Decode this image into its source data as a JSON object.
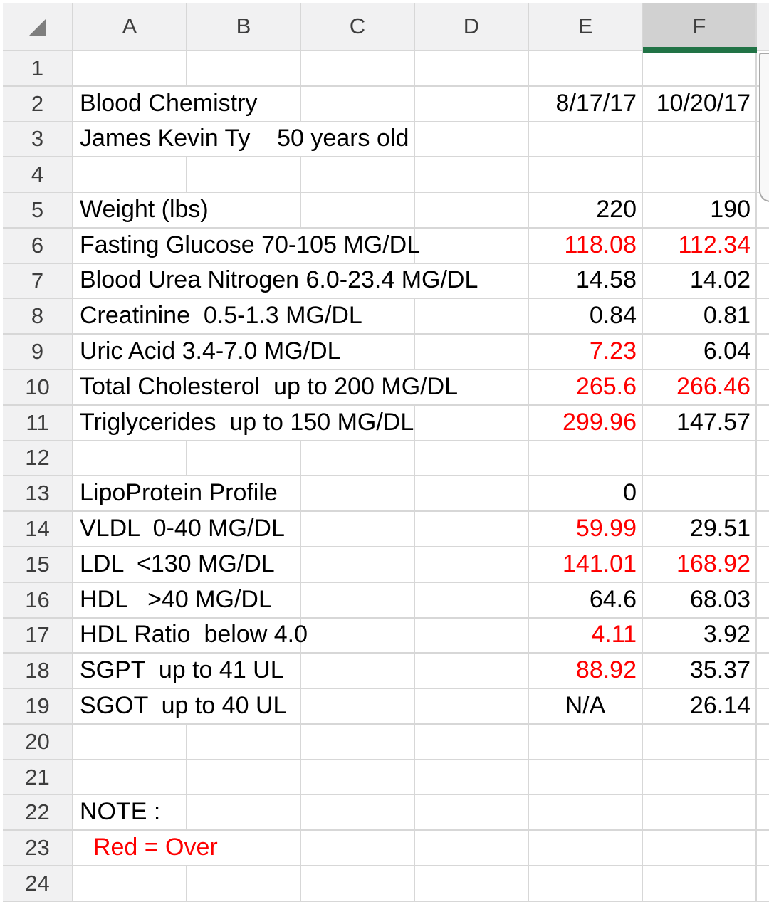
{
  "sheet": {
    "title": "Blood Chemistry spreadsheet",
    "selected_column": "F",
    "columns": [
      "A",
      "B",
      "C",
      "D",
      "E",
      "F"
    ],
    "first_visible_row": 1,
    "last_visible_row": 24
  },
  "colors": {
    "gridline": "#d7d7d7",
    "header_bg": "#f1f1f2",
    "selected_header_bg": "#d1d1d1",
    "header_text": "#3d3d3d",
    "cell_text": "#000000",
    "alert_red": "#fe0000",
    "accent_green": "#217346"
  },
  "rows": [
    {
      "n": 1
    },
    {
      "n": 2,
      "label": "Blood Chemistry",
      "values": {
        "E": {
          "text": "8/17/17"
        },
        "F": {
          "text": "10/20/17"
        }
      },
      "hidden_gridlines": [
        "A|B"
      ]
    },
    {
      "n": 3,
      "label": "James Kevin Ty    50 years old",
      "hidden_gridlines": [
        "A|B",
        "B|C"
      ]
    },
    {
      "n": 4
    },
    {
      "n": 5,
      "label": "Weight (lbs)",
      "values": {
        "E": {
          "text": "220"
        },
        "F": {
          "text": "190"
        }
      },
      "hidden_gridlines": [
        "A|B"
      ]
    },
    {
      "n": 6,
      "label": "Fasting Glucose 70-105 MG/DL",
      "values": {
        "E": {
          "text": "118.08",
          "red": true
        },
        "F": {
          "text": "112.34",
          "red": true
        }
      },
      "hidden_gridlines": [
        "A|B",
        "B|C"
      ]
    },
    {
      "n": 7,
      "label": "Blood Urea Nitrogen 6.0-23.4 MG/DL",
      "values": {
        "E": {
          "text": "14.58"
        },
        "F": {
          "text": "14.02"
        }
      },
      "hidden_gridlines": [
        "A|B",
        "B|C",
        "C|D"
      ]
    },
    {
      "n": 8,
      "label": "Creatinine  0.5-1.3 MG/DL",
      "values": {
        "E": {
          "text": "0.84"
        },
        "F": {
          "text": "0.81"
        }
      },
      "hidden_gridlines": [
        "A|B",
        "B|C"
      ]
    },
    {
      "n": 9,
      "label": "Uric Acid 3.4-7.0 MG/DL",
      "values": {
        "E": {
          "text": "7.23",
          "red": true
        },
        "F": {
          "text": "6.04"
        }
      },
      "hidden_gridlines": [
        "A|B",
        "B|C"
      ]
    },
    {
      "n": 10,
      "label": "Total Cholesterol  up to 200 MG/DL",
      "values": {
        "E": {
          "text": "265.6",
          "red": true
        },
        "F": {
          "text": "266.46",
          "red": true
        }
      },
      "hidden_gridlines": [
        "A|B",
        "B|C",
        "C|D"
      ]
    },
    {
      "n": 11,
      "label": "Triglycerides  up to 150 MG/DL",
      "values": {
        "E": {
          "text": "299.96",
          "red": true
        },
        "F": {
          "text": "147.57"
        }
      },
      "hidden_gridlines": [
        "A|B",
        "B|C"
      ]
    },
    {
      "n": 12
    },
    {
      "n": 13,
      "label": "LipoProtein Profile",
      "values": {
        "E": {
          "text": "0"
        }
      },
      "hidden_gridlines": [
        "A|B"
      ]
    },
    {
      "n": 14,
      "label": "VLDL  0-40 MG/DL",
      "values": {
        "E": {
          "text": "59.99",
          "red": true
        },
        "F": {
          "text": "29.51"
        }
      },
      "hidden_gridlines": [
        "A|B"
      ]
    },
    {
      "n": 15,
      "label": "LDL  <130 MG/DL",
      "values": {
        "E": {
          "text": "141.01",
          "red": true
        },
        "F": {
          "text": "168.92",
          "red": true
        }
      },
      "hidden_gridlines": [
        "A|B"
      ]
    },
    {
      "n": 16,
      "label": "HDL   >40 MG/DL",
      "values": {
        "E": {
          "text": "64.6"
        },
        "F": {
          "text": "68.03"
        }
      },
      "hidden_gridlines": [
        "A|B"
      ]
    },
    {
      "n": 17,
      "label": "HDL Ratio  below 4.0",
      "values": {
        "E": {
          "text": "4.11",
          "red": true
        },
        "F": {
          "text": "3.92"
        }
      },
      "hidden_gridlines": [
        "A|B"
      ]
    },
    {
      "n": 18,
      "label": "SGPT  up to 41 UL",
      "values": {
        "E": {
          "text": "88.92",
          "red": true
        },
        "F": {
          "text": "35.37"
        }
      },
      "hidden_gridlines": [
        "A|B"
      ]
    },
    {
      "n": 19,
      "label": "SGOT  up to 40 UL",
      "values": {
        "E": {
          "text": "N/A",
          "align": "center"
        },
        "F": {
          "text": "26.14"
        }
      },
      "hidden_gridlines": [
        "A|B"
      ]
    },
    {
      "n": 20
    },
    {
      "n": 21
    },
    {
      "n": 22,
      "label": "NOTE :"
    },
    {
      "n": 23,
      "label": "  Red = Over",
      "label_red": true,
      "hidden_gridlines": [
        "A|B"
      ]
    },
    {
      "n": 24
    }
  ],
  "scrollbar": {
    "orientation": "vertical",
    "position": "top"
  }
}
